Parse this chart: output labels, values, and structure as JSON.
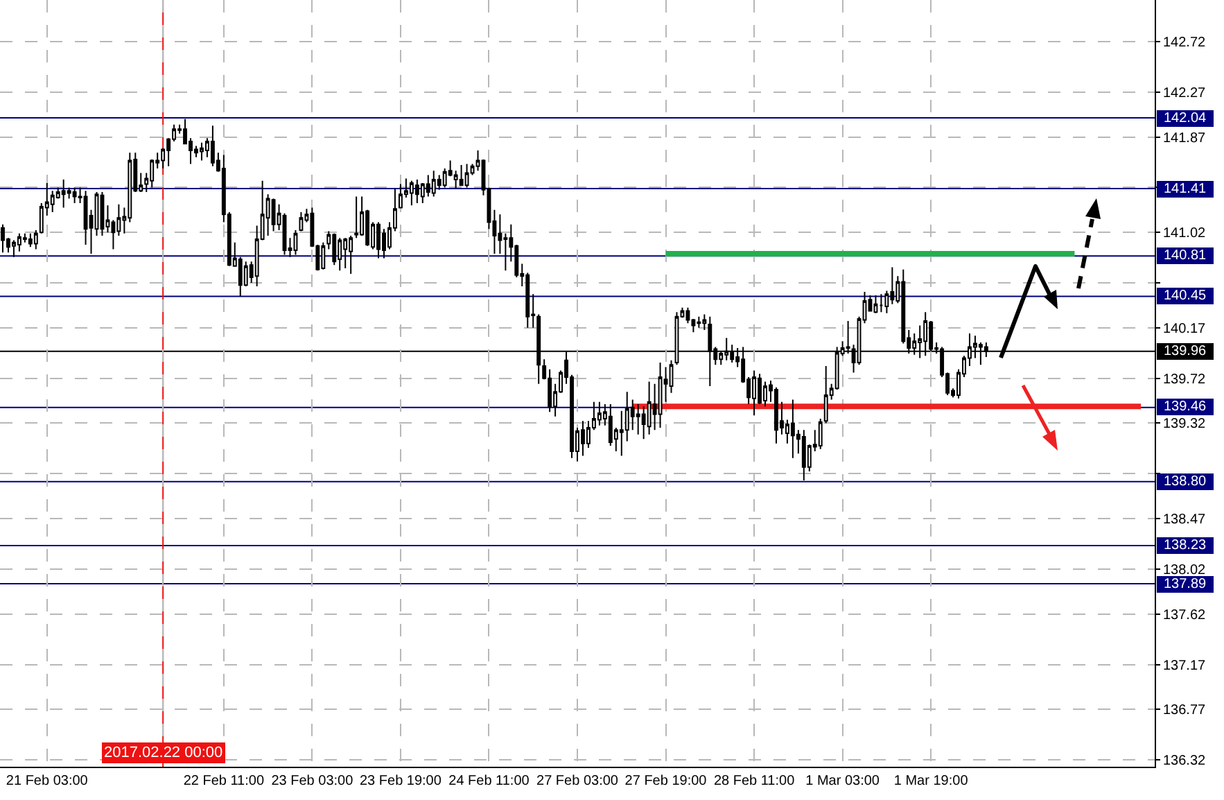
{
  "chart_data": {
    "type": "candlestick",
    "color": "#000000",
    "categories": [
      null,
      null,
      null,
      null,
      null,
      null,
      null,
      null,
      "21 Feb 03:00",
      null,
      null,
      null,
      null,
      null,
      null,
      null,
      null,
      null,
      null,
      null,
      null,
      null,
      null,
      null,
      null,
      null,
      null,
      null,
      null,
      "2017.02.22 00:00",
      null,
      null,
      null,
      null,
      null,
      null,
      null,
      null,
      null,
      null,
      "22 Feb 11:00",
      null,
      null,
      null,
      null,
      null,
      null,
      null,
      null,
      null,
      null,
      null,
      null,
      null,
      null,
      null,
      "23 Feb 03:00",
      null,
      null,
      null,
      null,
      null,
      null,
      null,
      null,
      null,
      null,
      null,
      null,
      null,
      null,
      null,
      "23 Feb 19:00",
      null,
      null,
      null,
      null,
      null,
      null,
      null,
      null,
      null,
      null,
      null,
      null,
      null,
      null,
      null,
      "24 Feb 11:00",
      null,
      null,
      null,
      null,
      null,
      null,
      null,
      null,
      null,
      null,
      null,
      null,
      null,
      null,
      null,
      "27 Feb 03:00",
      null,
      null,
      null,
      null,
      null,
      null,
      null,
      null,
      null,
      null,
      null,
      null,
      null,
      null,
      null,
      "27 Feb 19:00",
      null,
      null,
      null,
      null,
      null,
      null,
      null,
      null,
      null,
      null,
      null,
      null,
      null,
      null,
      null,
      "28 Feb 11:00",
      null,
      null,
      null,
      null,
      null,
      null,
      null,
      null,
      null,
      null,
      null,
      null,
      null,
      null,
      null,
      "1 Mar 03:00",
      null,
      null,
      null,
      null,
      null,
      null,
      null,
      null,
      null,
      null,
      null,
      null,
      null,
      null,
      null,
      "1 Mar 19:00",
      null,
      null,
      null,
      null,
      null,
      null,
      null,
      null,
      null,
      null,
      null,
      null,
      null,
      null,
      null,
      null,
      null,
      null,
      null,
      null,
      null,
      null,
      null,
      null,
      null,
      null,
      null,
      null,
      null,
      null,
      null,
      null,
      null,
      null,
      null,
      null,
      null,
      null,
      null,
      null
    ],
    "ohlc": [
      [
        141.06,
        141.09,
        140.84,
        140.95
      ],
      [
        140.96,
        140.97,
        140.84,
        140.89
      ],
      [
        140.9,
        140.95,
        140.8,
        140.93
      ],
      [
        140.91,
        141.01,
        140.85,
        140.98
      ],
      [
        140.96,
        141.01,
        140.93,
        140.97
      ],
      [
        140.96,
        141.01,
        140.89,
        140.92
      ],
      [
        140.92,
        141.04,
        140.87,
        141.01
      ],
      [
        141.02,
        141.28,
        141.01,
        141.25
      ],
      [
        141.24,
        141.46,
        141.17,
        141.29
      ],
      [
        141.27,
        141.39,
        141.2,
        141.35
      ],
      [
        141.33,
        141.42,
        141.32,
        141.38
      ],
      [
        141.39,
        141.49,
        141.24,
        141.36
      ],
      [
        141.37,
        141.42,
        141.32,
        141.39
      ],
      [
        141.38,
        141.42,
        141.28,
        141.34
      ],
      [
        141.34,
        141.42,
        141.28,
        141.33
      ],
      [
        141.34,
        141.39,
        140.91,
        141.05
      ],
      [
        141.17,
        141.22,
        140.83,
        141.06
      ],
      [
        141.05,
        141.38,
        140.99,
        141.36
      ],
      [
        141.35,
        141.38,
        140.99,
        141.05
      ],
      [
        141.07,
        141.26,
        141.02,
        141.13
      ],
      [
        141.11,
        141.13,
        140.87,
        141.02
      ],
      [
        141.03,
        141.27,
        140.99,
        141.15
      ],
      [
        141.13,
        141.24,
        141.01,
        141.16
      ],
      [
        141.15,
        141.73,
        141.11,
        141.66
      ],
      [
        141.67,
        141.73,
        141.38,
        141.39
      ],
      [
        141.39,
        141.55,
        141.38,
        141.44
      ],
      [
        141.45,
        141.55,
        141.38,
        141.5
      ],
      [
        141.48,
        141.67,
        141.42,
        141.66
      ],
      [
        141.66,
        141.73,
        141.59,
        141.64
      ],
      [
        141.66,
        141.77,
        141.59,
        141.76
      ],
      [
        141.85,
        141.86,
        141.61,
        141.75
      ],
      [
        141.85,
        141.98,
        141.83,
        141.94
      ],
      [
        141.93,
        141.98,
        141.9,
        141.94
      ],
      [
        141.94,
        142.03,
        141.81,
        141.81
      ],
      [
        141.83,
        141.86,
        141.63,
        141.75
      ],
      [
        141.76,
        141.79,
        141.69,
        141.73
      ],
      [
        141.74,
        141.82,
        141.66,
        141.77
      ],
      [
        141.75,
        141.86,
        141.69,
        141.83
      ],
      [
        141.83,
        141.97,
        141.61,
        141.64
      ],
      [
        141.66,
        141.73,
        141.56,
        141.57
      ],
      [
        141.59,
        141.71,
        141.11,
        141.18
      ],
      [
        141.18,
        141.2,
        140.72,
        140.73
      ],
      [
        140.72,
        140.93,
        140.72,
        140.79
      ],
      [
        140.78,
        140.8,
        140.45,
        140.55
      ],
      [
        140.55,
        140.76,
        140.54,
        140.72
      ],
      [
        140.73,
        140.76,
        140.57,
        140.62
      ],
      [
        140.63,
        141.08,
        140.54,
        140.96
      ],
      [
        140.96,
        141.48,
        140.95,
        141.18
      ],
      [
        141.15,
        141.36,
        140.99,
        141.32
      ],
      [
        141.31,
        141.32,
        141.03,
        141.09
      ],
      [
        141.09,
        141.27,
        141.04,
        141.19
      ],
      [
        141.17,
        141.19,
        140.82,
        140.86
      ],
      [
        140.88,
        140.97,
        140.8,
        140.86
      ],
      [
        140.86,
        141.04,
        140.82,
        141.01
      ],
      [
        141.04,
        141.2,
        141.03,
        141.15
      ],
      [
        141.13,
        141.23,
        141.11,
        141.18
      ],
      [
        141.19,
        141.24,
        140.89,
        140.9
      ],
      [
        140.9,
        140.91,
        140.68,
        140.69
      ],
      [
        140.7,
        140.93,
        140.69,
        140.9
      ],
      [
        140.92,
        141.03,
        140.87,
        141.0
      ],
      [
        141.0,
        141.01,
        140.73,
        140.76
      ],
      [
        140.78,
        140.97,
        140.68,
        140.95
      ],
      [
        140.87,
        140.97,
        140.7,
        140.96
      ],
      [
        140.85,
        140.99,
        140.65,
        140.97
      ],
      [
        141.0,
        141.34,
        140.97,
        141.01
      ],
      [
        141.0,
        141.34,
        140.99,
        141.2
      ],
      [
        141.21,
        141.22,
        140.9,
        140.91
      ],
      [
        140.89,
        141.11,
        140.87,
        141.09
      ],
      [
        141.09,
        141.11,
        140.79,
        140.87
      ],
      [
        141.01,
        141.05,
        140.79,
        140.86
      ],
      [
        140.89,
        141.11,
        140.87,
        141.06
      ],
      [
        141.06,
        141.41,
        141.03,
        141.23
      ],
      [
        141.24,
        141.45,
        141.24,
        141.36
      ],
      [
        141.36,
        141.5,
        141.33,
        141.39
      ],
      [
        141.37,
        141.48,
        141.26,
        141.46
      ],
      [
        141.44,
        141.49,
        141.28,
        141.36
      ],
      [
        141.34,
        141.46,
        141.28,
        141.45
      ],
      [
        141.45,
        141.53,
        141.34,
        141.38
      ],
      [
        141.37,
        141.57,
        141.34,
        141.49
      ],
      [
        141.49,
        141.53,
        141.4,
        141.44
      ],
      [
        141.44,
        141.59,
        141.42,
        141.56
      ],
      [
        141.57,
        141.66,
        141.52,
        141.53
      ],
      [
        141.49,
        141.57,
        141.41,
        141.53
      ],
      [
        141.49,
        141.62,
        141.44,
        141.44
      ],
      [
        141.44,
        141.63,
        141.42,
        141.55
      ],
      [
        141.55,
        141.63,
        141.53,
        141.61
      ],
      [
        141.61,
        141.75,
        141.57,
        141.66
      ],
      [
        141.66,
        141.67,
        141.35,
        141.4
      ],
      [
        141.41,
        141.42,
        141.05,
        141.11
      ],
      [
        141.12,
        141.22,
        140.83,
        140.99
      ],
      [
        141.01,
        141.18,
        140.83,
        140.95
      ],
      [
        140.97,
        141.01,
        140.68,
        140.96
      ],
      [
        140.97,
        141.09,
        140.76,
        140.89
      ],
      [
        140.9,
        140.91,
        140.62,
        140.64
      ],
      [
        140.65,
        140.74,
        140.54,
        140.63
      ],
      [
        140.64,
        140.66,
        140.17,
        140.27
      ],
      [
        140.29,
        140.47,
        140.17,
        140.28
      ],
      [
        140.27,
        140.29,
        139.67,
        139.84
      ],
      [
        139.83,
        139.89,
        139.71,
        139.72
      ],
      [
        139.72,
        139.8,
        139.42,
        139.47
      ],
      [
        139.47,
        139.67,
        139.38,
        139.6
      ],
      [
        139.6,
        139.79,
        139.59,
        139.77
      ],
      [
        139.88,
        139.96,
        139.67,
        139.73
      ],
      [
        139.73,
        139.75,
        139.01,
        139.07
      ],
      [
        139.07,
        139.28,
        138.98,
        139.25
      ],
      [
        139.26,
        139.34,
        139.03,
        139.14
      ],
      [
        139.14,
        139.34,
        139.1,
        139.28
      ],
      [
        139.28,
        139.51,
        139.26,
        139.36
      ],
      [
        139.35,
        139.51,
        139.3,
        139.41
      ],
      [
        139.36,
        139.49,
        139.3,
        139.42
      ],
      [
        139.38,
        139.49,
        139.12,
        139.15
      ],
      [
        139.18,
        139.28,
        139.07,
        139.26
      ],
      [
        139.26,
        139.43,
        139.03,
        139.24
      ],
      [
        139.26,
        139.6,
        139.16,
        139.45
      ],
      [
        139.46,
        139.53,
        139.26,
        139.38
      ],
      [
        139.4,
        139.49,
        139.22,
        139.38
      ],
      [
        139.4,
        139.47,
        139.18,
        139.31
      ],
      [
        139.29,
        139.69,
        139.22,
        139.51
      ],
      [
        139.49,
        139.67,
        139.26,
        139.4
      ],
      [
        139.4,
        139.86,
        139.28,
        139.73
      ],
      [
        139.71,
        139.82,
        139.51,
        139.67
      ],
      [
        139.65,
        139.88,
        139.59,
        139.84
      ],
      [
        139.86,
        140.31,
        139.84,
        140.27
      ],
      [
        140.27,
        140.35,
        140.26,
        140.32
      ],
      [
        140.32,
        140.35,
        140.21,
        140.24
      ],
      [
        140.24,
        140.25,
        140.13,
        140.19
      ],
      [
        140.22,
        140.27,
        140.17,
        140.21
      ],
      [
        140.21,
        140.29,
        140.15,
        140.24
      ],
      [
        140.2,
        140.27,
        139.65,
        139.96
      ],
      [
        139.98,
        140.0,
        139.84,
        139.89
      ],
      [
        139.89,
        139.96,
        139.84,
        139.94
      ],
      [
        139.93,
        140.08,
        139.88,
        139.96
      ],
      [
        139.95,
        140.02,
        139.86,
        139.89
      ],
      [
        139.91,
        139.99,
        139.82,
        139.87
      ],
      [
        139.89,
        140.0,
        139.68,
        139.69
      ],
      [
        139.71,
        139.73,
        139.49,
        139.55
      ],
      [
        139.54,
        139.79,
        139.39,
        139.73
      ],
      [
        139.72,
        139.76,
        139.49,
        139.5
      ],
      [
        139.52,
        139.69,
        139.47,
        139.65
      ],
      [
        139.66,
        139.7,
        139.51,
        139.61
      ],
      [
        139.62,
        139.64,
        139.14,
        139.26
      ],
      [
        139.34,
        139.51,
        139.22,
        139.28
      ],
      [
        139.23,
        139.35,
        139.14,
        139.31
      ],
      [
        139.32,
        139.53,
        139.01,
        139.21
      ],
      [
        139.22,
        139.26,
        139.05,
        139.18
      ],
      [
        139.2,
        139.26,
        138.81,
        138.93
      ],
      [
        138.93,
        139.13,
        138.89,
        139.12
      ],
      [
        139.11,
        139.26,
        139.07,
        139.13
      ],
      [
        139.12,
        139.36,
        139.09,
        139.33
      ],
      [
        139.34,
        139.83,
        139.32,
        139.57
      ],
      [
        139.57,
        139.67,
        139.53,
        139.63
      ],
      [
        139.63,
        140.0,
        139.62,
        139.95
      ],
      [
        139.94,
        140.05,
        139.92,
        139.99
      ],
      [
        139.99,
        140.23,
        139.94,
        140.0
      ],
      [
        139.98,
        140.02,
        139.77,
        139.86
      ],
      [
        139.86,
        140.27,
        139.84,
        140.25
      ],
      [
        140.24,
        140.49,
        140.21,
        140.41
      ],
      [
        140.42,
        140.46,
        140.32,
        140.32
      ],
      [
        140.31,
        140.46,
        140.3,
        140.38
      ],
      [
        140.37,
        140.47,
        140.31,
        140.37
      ],
      [
        140.36,
        140.5,
        140.3,
        140.47
      ],
      [
        140.49,
        140.71,
        140.38,
        140.42
      ],
      [
        140.41,
        140.63,
        140.39,
        140.58
      ],
      [
        140.58,
        140.69,
        140.03,
        140.05
      ],
      [
        140.08,
        140.15,
        139.94,
        139.99
      ],
      [
        139.99,
        140.12,
        139.93,
        140.05
      ],
      [
        140.04,
        140.19,
        139.9,
        140.07
      ],
      [
        140.05,
        140.31,
        139.92,
        140.23
      ],
      [
        140.22,
        140.23,
        139.96,
        139.98
      ],
      [
        139.99,
        140.04,
        139.94,
        139.98
      ],
      [
        139.98,
        140.0,
        139.73,
        139.75
      ],
      [
        139.76,
        139.77,
        139.57,
        139.59
      ],
      [
        139.61,
        139.63,
        139.55,
        139.57
      ],
      [
        139.57,
        139.8,
        139.54,
        139.77
      ],
      [
        139.76,
        139.92,
        139.73,
        139.9
      ],
      [
        139.9,
        140.12,
        139.83,
        140.0
      ],
      [
        140.0,
        140.1,
        139.9,
        140.03
      ],
      [
        140.02,
        140.04,
        139.84,
        140.0
      ],
      [
        140.0,
        140.04,
        139.91,
        139.96
      ],
      null,
      null,
      null,
      null,
      null,
      null,
      null,
      null,
      null,
      null,
      null,
      null,
      null,
      null,
      null,
      null,
      null,
      null,
      null,
      null,
      null,
      null,
      null,
      null,
      null,
      null,
      null,
      null,
      null,
      null
    ],
    "series": [
      {
        "type": "line",
        "color": "#22b14c",
        "values": [
          null,
          null,
          null,
          null,
          null,
          null,
          null,
          null,
          null,
          null,
          null,
          null,
          null,
          null,
          null,
          null,
          null,
          null,
          null,
          null,
          null,
          null,
          null,
          null,
          null,
          null,
          null,
          null,
          null,
          null,
          null,
          null,
          null,
          null,
          null,
          null,
          null,
          null,
          null,
          null,
          null,
          null,
          null,
          null,
          null,
          null,
          null,
          null,
          null,
          null,
          null,
          null,
          null,
          null,
          null,
          null,
          null,
          null,
          null,
          null,
          null,
          null,
          null,
          null,
          null,
          null,
          null,
          null,
          null,
          null,
          null,
          null,
          null,
          null,
          null,
          null,
          null,
          null,
          null,
          null,
          null,
          null,
          null,
          null,
          null,
          null,
          null,
          null,
          null,
          null,
          null,
          null,
          null,
          null,
          null,
          null,
          null,
          null,
          null,
          null,
          null,
          null,
          null,
          null,
          null,
          null,
          null,
          null,
          null,
          null,
          null,
          null,
          null,
          null,
          null,
          null,
          null,
          null,
          null,
          null,
          140.83,
          140.83,
          140.83,
          140.83,
          140.83,
          140.83,
          140.83,
          140.83,
          140.83,
          140.83,
          140.83,
          140.83,
          140.83,
          140.83,
          140.83,
          140.83,
          140.83,
          140.83,
          140.83,
          140.83,
          140.83,
          140.83,
          140.83,
          140.83,
          140.83,
          140.83,
          140.83,
          140.83,
          140.83,
          140.83,
          140.83,
          140.83,
          140.83,
          140.83,
          140.83,
          140.83,
          140.83,
          140.83,
          140.83,
          140.83,
          140.83,
          140.83,
          140.83,
          140.83,
          140.83,
          140.83,
          140.83,
          140.83,
          140.83,
          140.83,
          140.83,
          140.83,
          140.83,
          140.83,
          140.83,
          140.83,
          140.83,
          140.83,
          140.83,
          140.83,
          140.83,
          140.83,
          140.83,
          140.83,
          140.83,
          140.83,
          140.83,
          140.83,
          140.83,
          140.83,
          140.83,
          140.83,
          140.83,
          140.83,
          140.83,
          null,
          null,
          null,
          null,
          null,
          null,
          null,
          null,
          null,
          null,
          null,
          null,
          null,
          null
        ]
      },
      {
        "type": "line",
        "color": "#ee2222",
        "values": [
          null,
          null,
          null,
          null,
          null,
          null,
          null,
          null,
          null,
          null,
          null,
          null,
          null,
          null,
          null,
          null,
          null,
          null,
          null,
          null,
          null,
          null,
          null,
          null,
          null,
          null,
          null,
          null,
          null,
          null,
          null,
          null,
          null,
          null,
          null,
          null,
          null,
          null,
          null,
          null,
          null,
          null,
          null,
          null,
          null,
          null,
          null,
          null,
          null,
          null,
          null,
          null,
          null,
          null,
          null,
          null,
          null,
          null,
          null,
          null,
          null,
          null,
          null,
          null,
          null,
          null,
          null,
          null,
          null,
          null,
          null,
          null,
          null,
          null,
          null,
          null,
          null,
          null,
          null,
          null,
          null,
          null,
          null,
          null,
          null,
          null,
          null,
          null,
          null,
          null,
          null,
          null,
          null,
          null,
          null,
          null,
          null,
          null,
          null,
          null,
          null,
          null,
          null,
          null,
          null,
          null,
          null,
          null,
          null,
          null,
          null,
          null,
          null,
          null,
          139.47,
          139.47,
          139.47,
          139.47,
          139.47,
          139.47,
          139.47,
          139.47,
          139.47,
          139.47,
          139.47,
          139.47,
          139.47,
          139.47,
          139.47,
          139.47,
          139.47,
          139.47,
          139.47,
          139.47,
          139.47,
          139.47,
          139.47,
          139.47,
          139.47,
          139.47,
          139.47,
          139.47,
          139.47,
          139.47,
          139.47,
          139.47,
          139.47,
          139.47,
          139.47,
          139.47,
          139.47,
          139.47,
          139.47,
          139.47,
          139.47,
          139.47,
          139.47,
          139.47,
          139.47,
          139.47,
          139.47,
          139.47,
          139.47,
          139.47,
          139.47,
          139.47,
          139.47,
          139.47,
          139.47,
          139.47,
          139.47,
          139.47,
          139.47,
          139.47,
          139.47,
          139.47,
          139.47,
          139.47,
          139.47,
          139.47,
          139.47,
          139.47,
          139.47,
          139.47,
          139.47,
          139.47,
          139.47,
          139.47,
          139.47,
          139.47,
          139.47,
          139.47,
          139.47,
          139.47,
          139.47,
          139.47,
          139.47,
          139.47,
          139.47,
          139.47,
          139.47,
          139.47,
          139.47,
          139.47,
          139.47,
          139.47,
          139.47,
          null,
          null
        ]
      }
    ],
    "ylim": [
      136.26,
      143.09
    ],
    "yticks": [
      142.72,
      142.27,
      141.87,
      {
        "value": 141.42,
        "label": null
      },
      141.02,
      {
        "value": 140.57,
        "label": null
      },
      140.17,
      139.72,
      139.32,
      {
        "value": 138.87,
        "label": null
      },
      138.47,
      138.02,
      137.62,
      137.17,
      136.77,
      136.32
    ],
    "ref_lines": [
      {
        "axis": "y",
        "value": 142.04,
        "label": "142.04",
        "color": "#000080"
      },
      {
        "axis": "y",
        "value": 141.41,
        "label": "141.41",
        "color": "#000080"
      },
      {
        "axis": "y",
        "value": 140.81,
        "label": "140.81",
        "color": "#000080"
      },
      {
        "axis": "y",
        "value": 140.45,
        "label": "140.45",
        "color": "#000080"
      },
      {
        "axis": "y",
        "value": 139.96,
        "label": "139.96",
        "color": "#000000"
      },
      {
        "axis": "y",
        "value": 139.46,
        "label": "139.46",
        "color": "#000080"
      },
      {
        "axis": "y",
        "value": 138.8,
        "label": "138.80",
        "color": "#000080"
      },
      {
        "axis": "y",
        "value": 138.23,
        "label": "138.23",
        "color": "#000080"
      },
      {
        "axis": "y",
        "value": 137.89,
        "label": "137.89",
        "color": "#000080"
      },
      {
        "axis": "x",
        "value": "2017.02.22 00:00",
        "color": "#ee1111"
      }
    ],
    "grid": true
  }
}
